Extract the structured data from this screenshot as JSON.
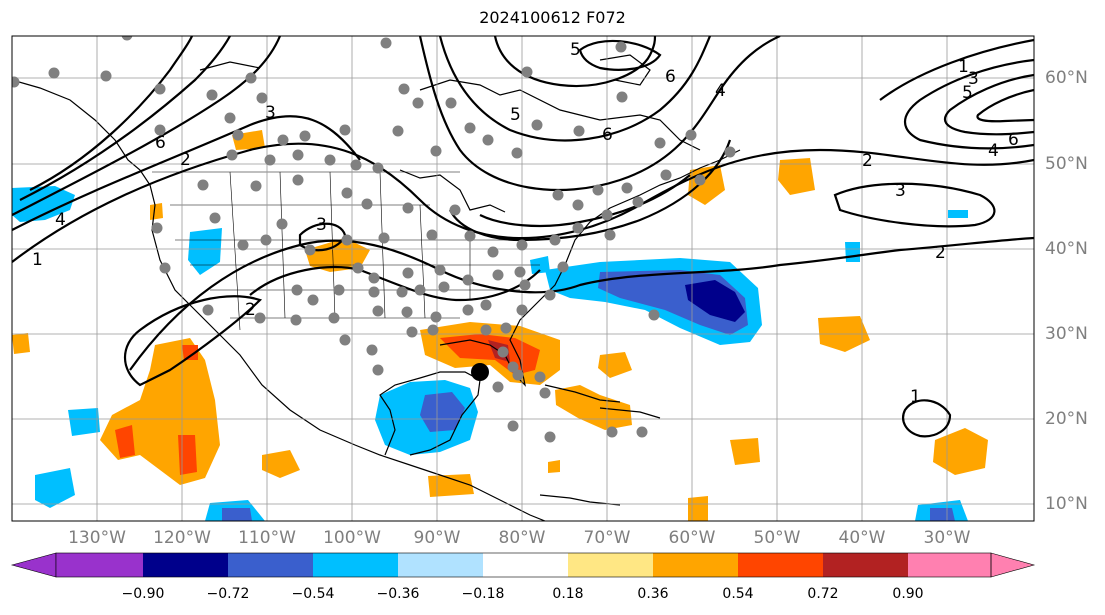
{
  "title": "2024100612 F072",
  "lon_labels": [
    "130°W",
    "120°W",
    "110°W",
    "100°W",
    "90°W",
    "80°W",
    "70°W",
    "60°W",
    "50°W",
    "40°W",
    "30°W"
  ],
  "lat_labels": [
    "60°N",
    "50°N",
    "40°N",
    "30°N",
    "20°N",
    "10°N"
  ],
  "contour_labels": [
    "1",
    "1",
    "1",
    "2",
    "2",
    "2",
    "2",
    "3",
    "3",
    "3",
    "3",
    "4",
    "4",
    "4",
    "5",
    "5",
    "5",
    "6",
    "6",
    "6",
    "6"
  ],
  "colorbar": {
    "ticks": [
      "−0.90",
      "−0.72",
      "−0.54",
      "−0.36",
      "−0.18",
      "0.18",
      "0.36",
      "0.54",
      "0.72",
      "0.90"
    ],
    "colors": [
      "#9932cc",
      "#00008b",
      "#3a5fcd",
      "#00bfff",
      "#b0e2ff",
      "#ffffff",
      "#ffe784",
      "#ffa500",
      "#ff4500",
      "#b22222",
      "#ff80b0"
    ]
  },
  "markers": {
    "storm_center": "black-dot",
    "stations": "gray-dots"
  }
}
